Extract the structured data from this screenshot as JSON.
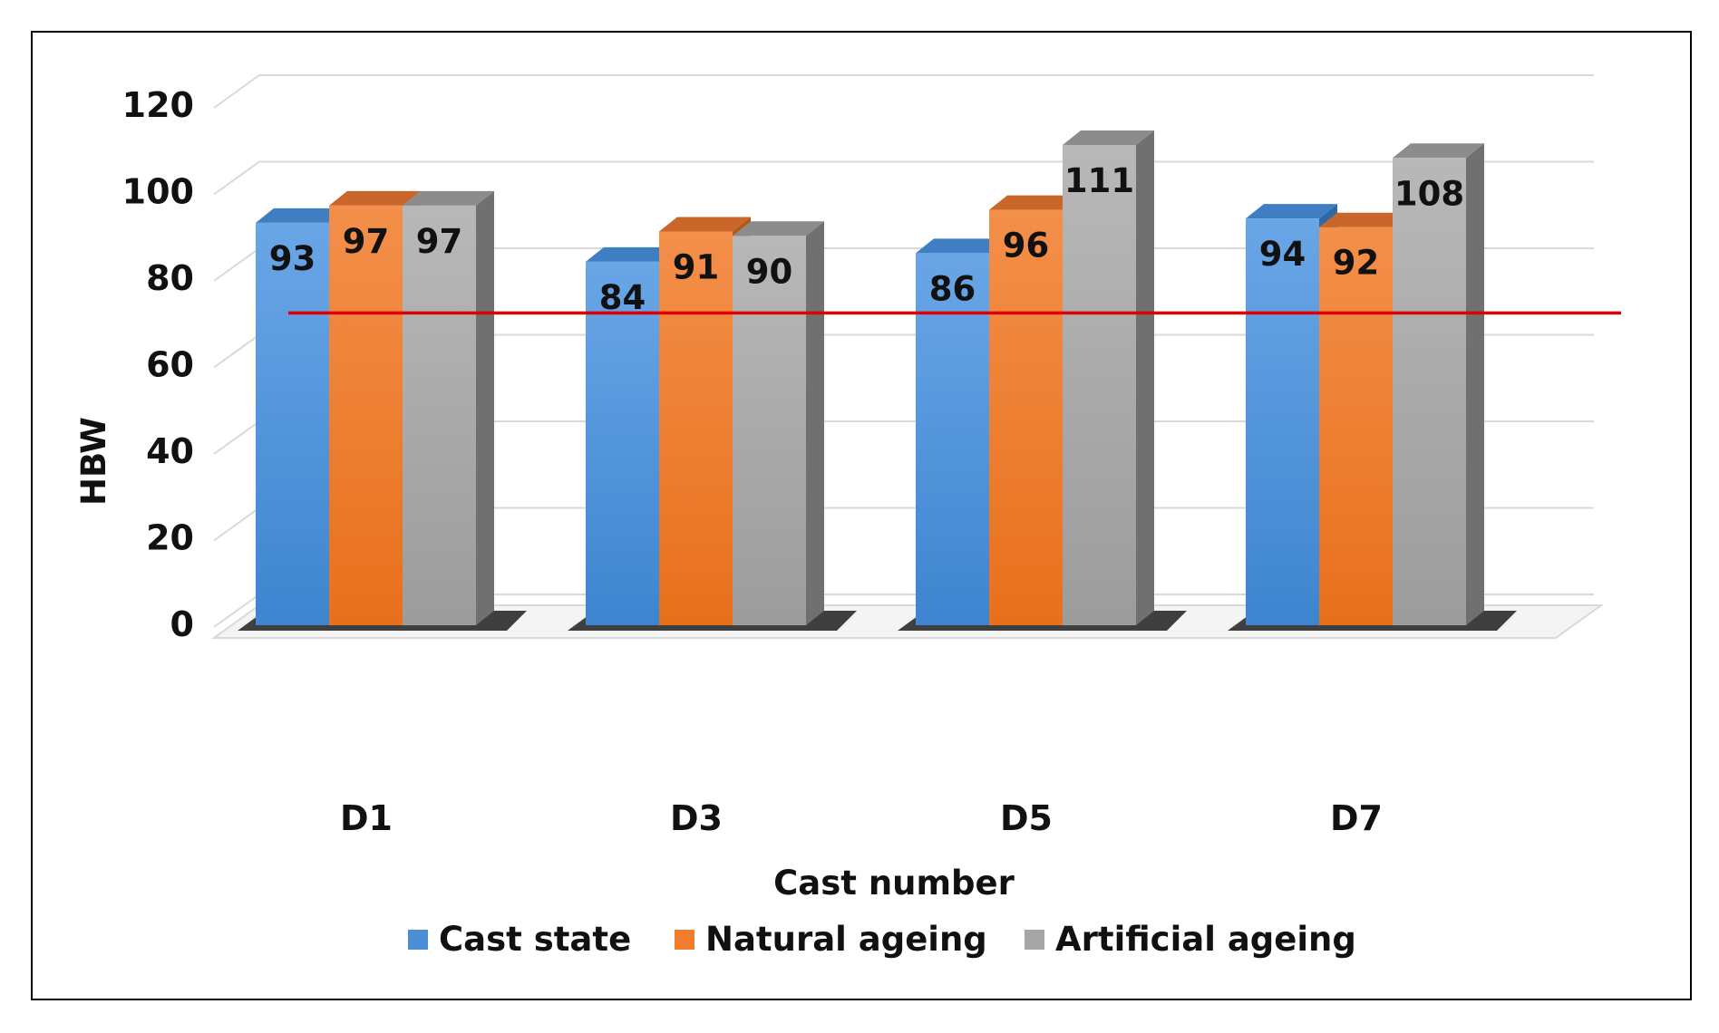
{
  "chart_data": {
    "type": "bar",
    "title": "",
    "xlabel": "Cast number",
    "ylabel": "HBW",
    "ylim": [
      0,
      120
    ],
    "yticks": [
      0,
      20,
      40,
      60,
      80,
      100,
      120
    ],
    "categories": [
      "D1",
      "D3",
      "D5",
      "D7"
    ],
    "series": [
      {
        "name": "Cast state",
        "values": [
          93,
          84,
          86,
          94
        ],
        "color": "#4a8fd6"
      },
      {
        "name": "Natural ageing",
        "values": [
          97,
          91,
          96,
          92
        ],
        "color": "#ef7d2a"
      },
      {
        "name": "Artificial ageing",
        "values": [
          97,
          90,
          111,
          108
        ],
        "color": "#a6a6a6"
      }
    ],
    "reference_line": {
      "value": 73,
      "color": "#e00000"
    },
    "legend_position": "bottom",
    "grid": true,
    "style": "3d-column"
  }
}
